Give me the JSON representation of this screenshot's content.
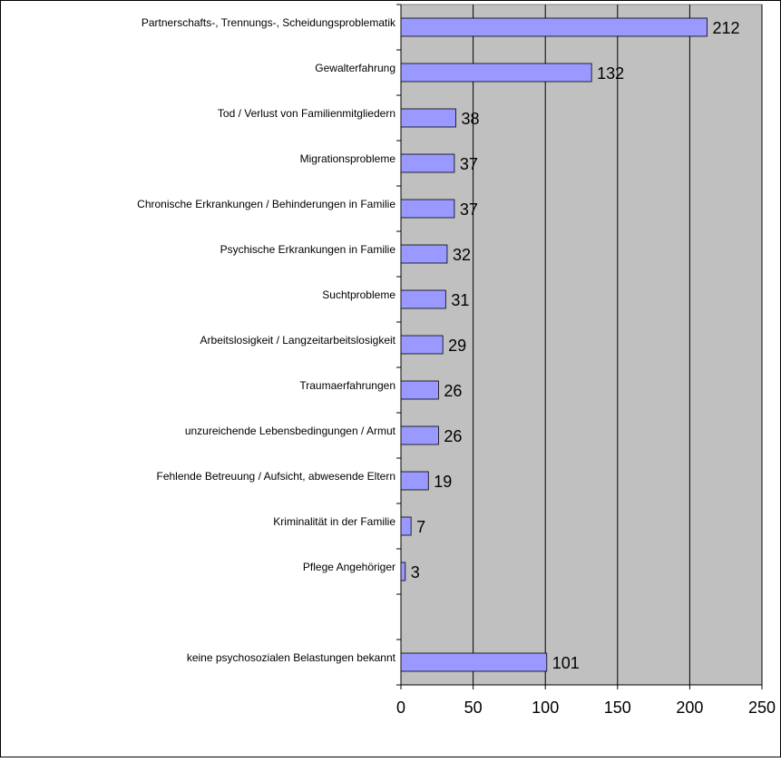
{
  "chart_data": {
    "type": "bar",
    "orientation": "horizontal",
    "categories": [
      "Partnerschafts-, Trennungs-, Scheidungsproblematik",
      "Gewalterfahrung",
      "Tod / Verlust von Familienmitgliedern",
      "Migrationsprobleme",
      "Chronische Erkrankungen / Behinderungen in Familie",
      "Psychische Erkrankungen in Familie",
      "Suchtprobleme",
      "Arbeitslosigkeit / Langzeitarbeitslosigkeit",
      "Traumaerfahrungen",
      "unzureichende Lebensbedingungen / Armut",
      "Fehlende Betreuung / Aufsicht, abwesende Eltern",
      "Kriminalität in der Familie",
      "Pflege Angehöriger",
      null,
      "keine psychosozialen Belastungen bekannt"
    ],
    "values": [
      212,
      132,
      38,
      37,
      37,
      32,
      31,
      29,
      26,
      26,
      19,
      7,
      3,
      null,
      101
    ],
    "color": "#9999ff",
    "plot_background": "#c0c0c0",
    "xlim": [
      0,
      250
    ],
    "xticks": [
      0,
      50,
      100,
      150,
      200,
      250
    ],
    "grid": true
  }
}
